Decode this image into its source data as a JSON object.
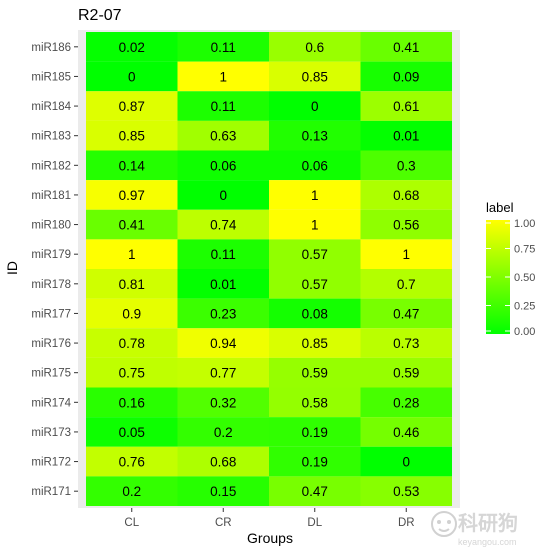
{
  "chart_data": {
    "type": "heatmap",
    "title": "R2-07",
    "xlabel": "Groups",
    "ylabel": "ID",
    "x_categories": [
      "CL",
      "CR",
      "DL",
      "DR"
    ],
    "y_categories": [
      "miR186",
      "miR185",
      "miR184",
      "miR183",
      "miR182",
      "miR181",
      "miR180",
      "miR179",
      "miR178",
      "miR177",
      "miR176",
      "miR175",
      "miR174",
      "miR173",
      "miR172",
      "miR171"
    ],
    "values": [
      [
        0.02,
        0.11,
        0.6,
        0.41
      ],
      [
        0,
        1,
        0.85,
        0.09
      ],
      [
        0.87,
        0.11,
        0,
        0.61
      ],
      [
        0.85,
        0.63,
        0.13,
        0.01
      ],
      [
        0.14,
        0.06,
        0.06,
        0.3
      ],
      [
        0.97,
        0,
        1,
        0.68
      ],
      [
        0.41,
        0.74,
        1,
        0.56
      ],
      [
        1,
        0.11,
        0.57,
        1
      ],
      [
        0.81,
        0.01,
        0.57,
        0.7
      ],
      [
        0.9,
        0.23,
        0.08,
        0.47
      ],
      [
        0.78,
        0.94,
        0.85,
        0.73
      ],
      [
        0.75,
        0.77,
        0.59,
        0.59
      ],
      [
        0.16,
        0.32,
        0.58,
        0.28
      ],
      [
        0.05,
        0.2,
        0.19,
        0.46
      ],
      [
        0.76,
        0.68,
        0.19,
        0
      ],
      [
        0.2,
        0.15,
        0.47,
        0.53
      ]
    ],
    "value_range": [
      0,
      1
    ],
    "color_low": "#00ff00",
    "color_high": "#ffff00",
    "legend": {
      "title": "label",
      "ticks": [
        0,
        0.25,
        0.5,
        0.75,
        1
      ],
      "tick_labels": [
        "0.00",
        "0.25",
        "0.50",
        "0.75",
        "1.00"
      ],
      "position": "right"
    },
    "panel_background": "#ebebeb"
  },
  "watermark": {
    "text": "科研狗",
    "subtext": "keyangou.com"
  }
}
